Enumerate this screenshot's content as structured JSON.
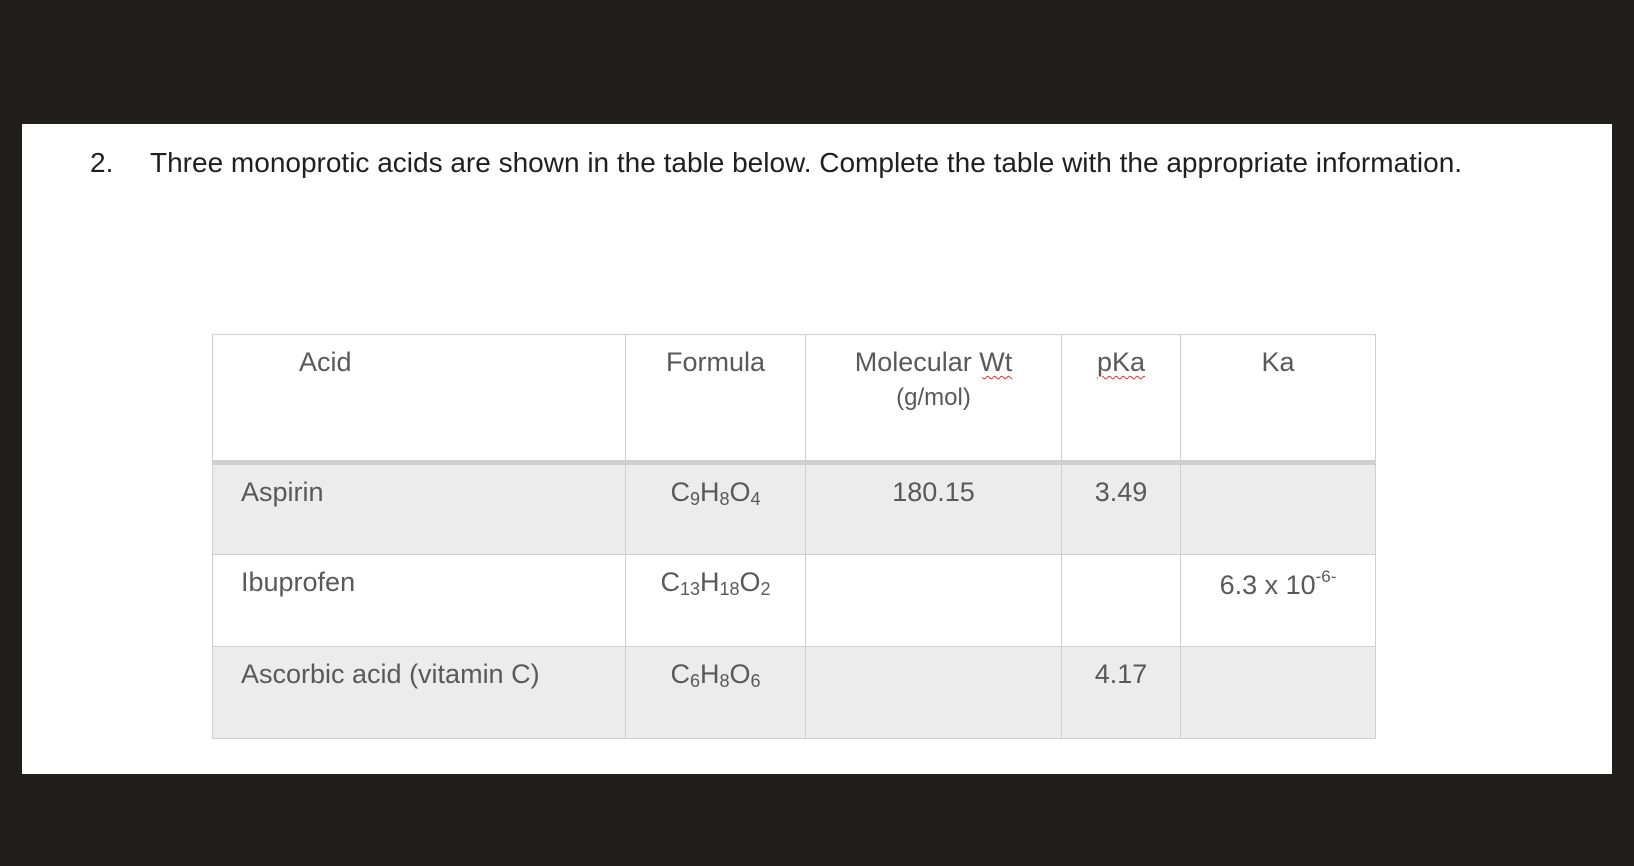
{
  "question": {
    "number": "2.",
    "text": "Three monoprotic acids are shown in the table below.  Complete the table with the appropriate information."
  },
  "table": {
    "headers": {
      "acid": "Acid",
      "formula": "Formula",
      "mw": "Molecular Wt",
      "mw_unit": "(g/mol)",
      "pka": "pKa",
      "ka": "Ka"
    },
    "rows": [
      {
        "acid": "Aspirin",
        "formula": [
          [
            "C",
            "9"
          ],
          [
            "H",
            "8"
          ],
          [
            "O",
            "4"
          ]
        ],
        "mw": "180.15",
        "pka": "3.49",
        "ka": "",
        "ka_exp": ""
      },
      {
        "acid": "Ibuprofen",
        "formula": [
          [
            "C",
            "13"
          ],
          [
            "H",
            "18"
          ],
          [
            "O",
            "2"
          ]
        ],
        "mw": "",
        "pka": "",
        "ka": "6.3 x 10",
        "ka_exp": "-6-"
      },
      {
        "acid": "Ascorbic acid (vitamin C)",
        "formula": [
          [
            "C",
            "6"
          ],
          [
            "H",
            "8"
          ],
          [
            "O",
            "6"
          ]
        ],
        "mw": "",
        "pka": "4.17",
        "ka": "",
        "ka_exp": ""
      }
    ]
  }
}
